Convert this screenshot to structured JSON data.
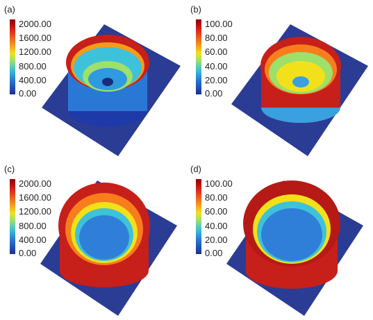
{
  "panels": [
    {
      "label": "(a)",
      "ticks": [
        "2000.00",
        "1600.00",
        "1200.00",
        "800.00",
        "400.00",
        "0.00"
      ]
    },
    {
      "label": "(b)",
      "ticks": [
        "100.00",
        "80.00",
        "60.00",
        "40.00",
        "20.00",
        "0.00"
      ]
    },
    {
      "label": "(c)",
      "ticks": [
        "2000.00",
        "1600.00",
        "1200.00",
        "800.00",
        "400.00",
        "0.00"
      ]
    },
    {
      "label": "(d)",
      "ticks": [
        "100.00",
        "80.00",
        "60.00",
        "40.00",
        "20.00",
        "0.00"
      ]
    }
  ],
  "colors": {
    "base": "#2b3c94",
    "low": "#3a8fd8",
    "mid": "#f2e11a",
    "high": "#c71f1a"
  }
}
